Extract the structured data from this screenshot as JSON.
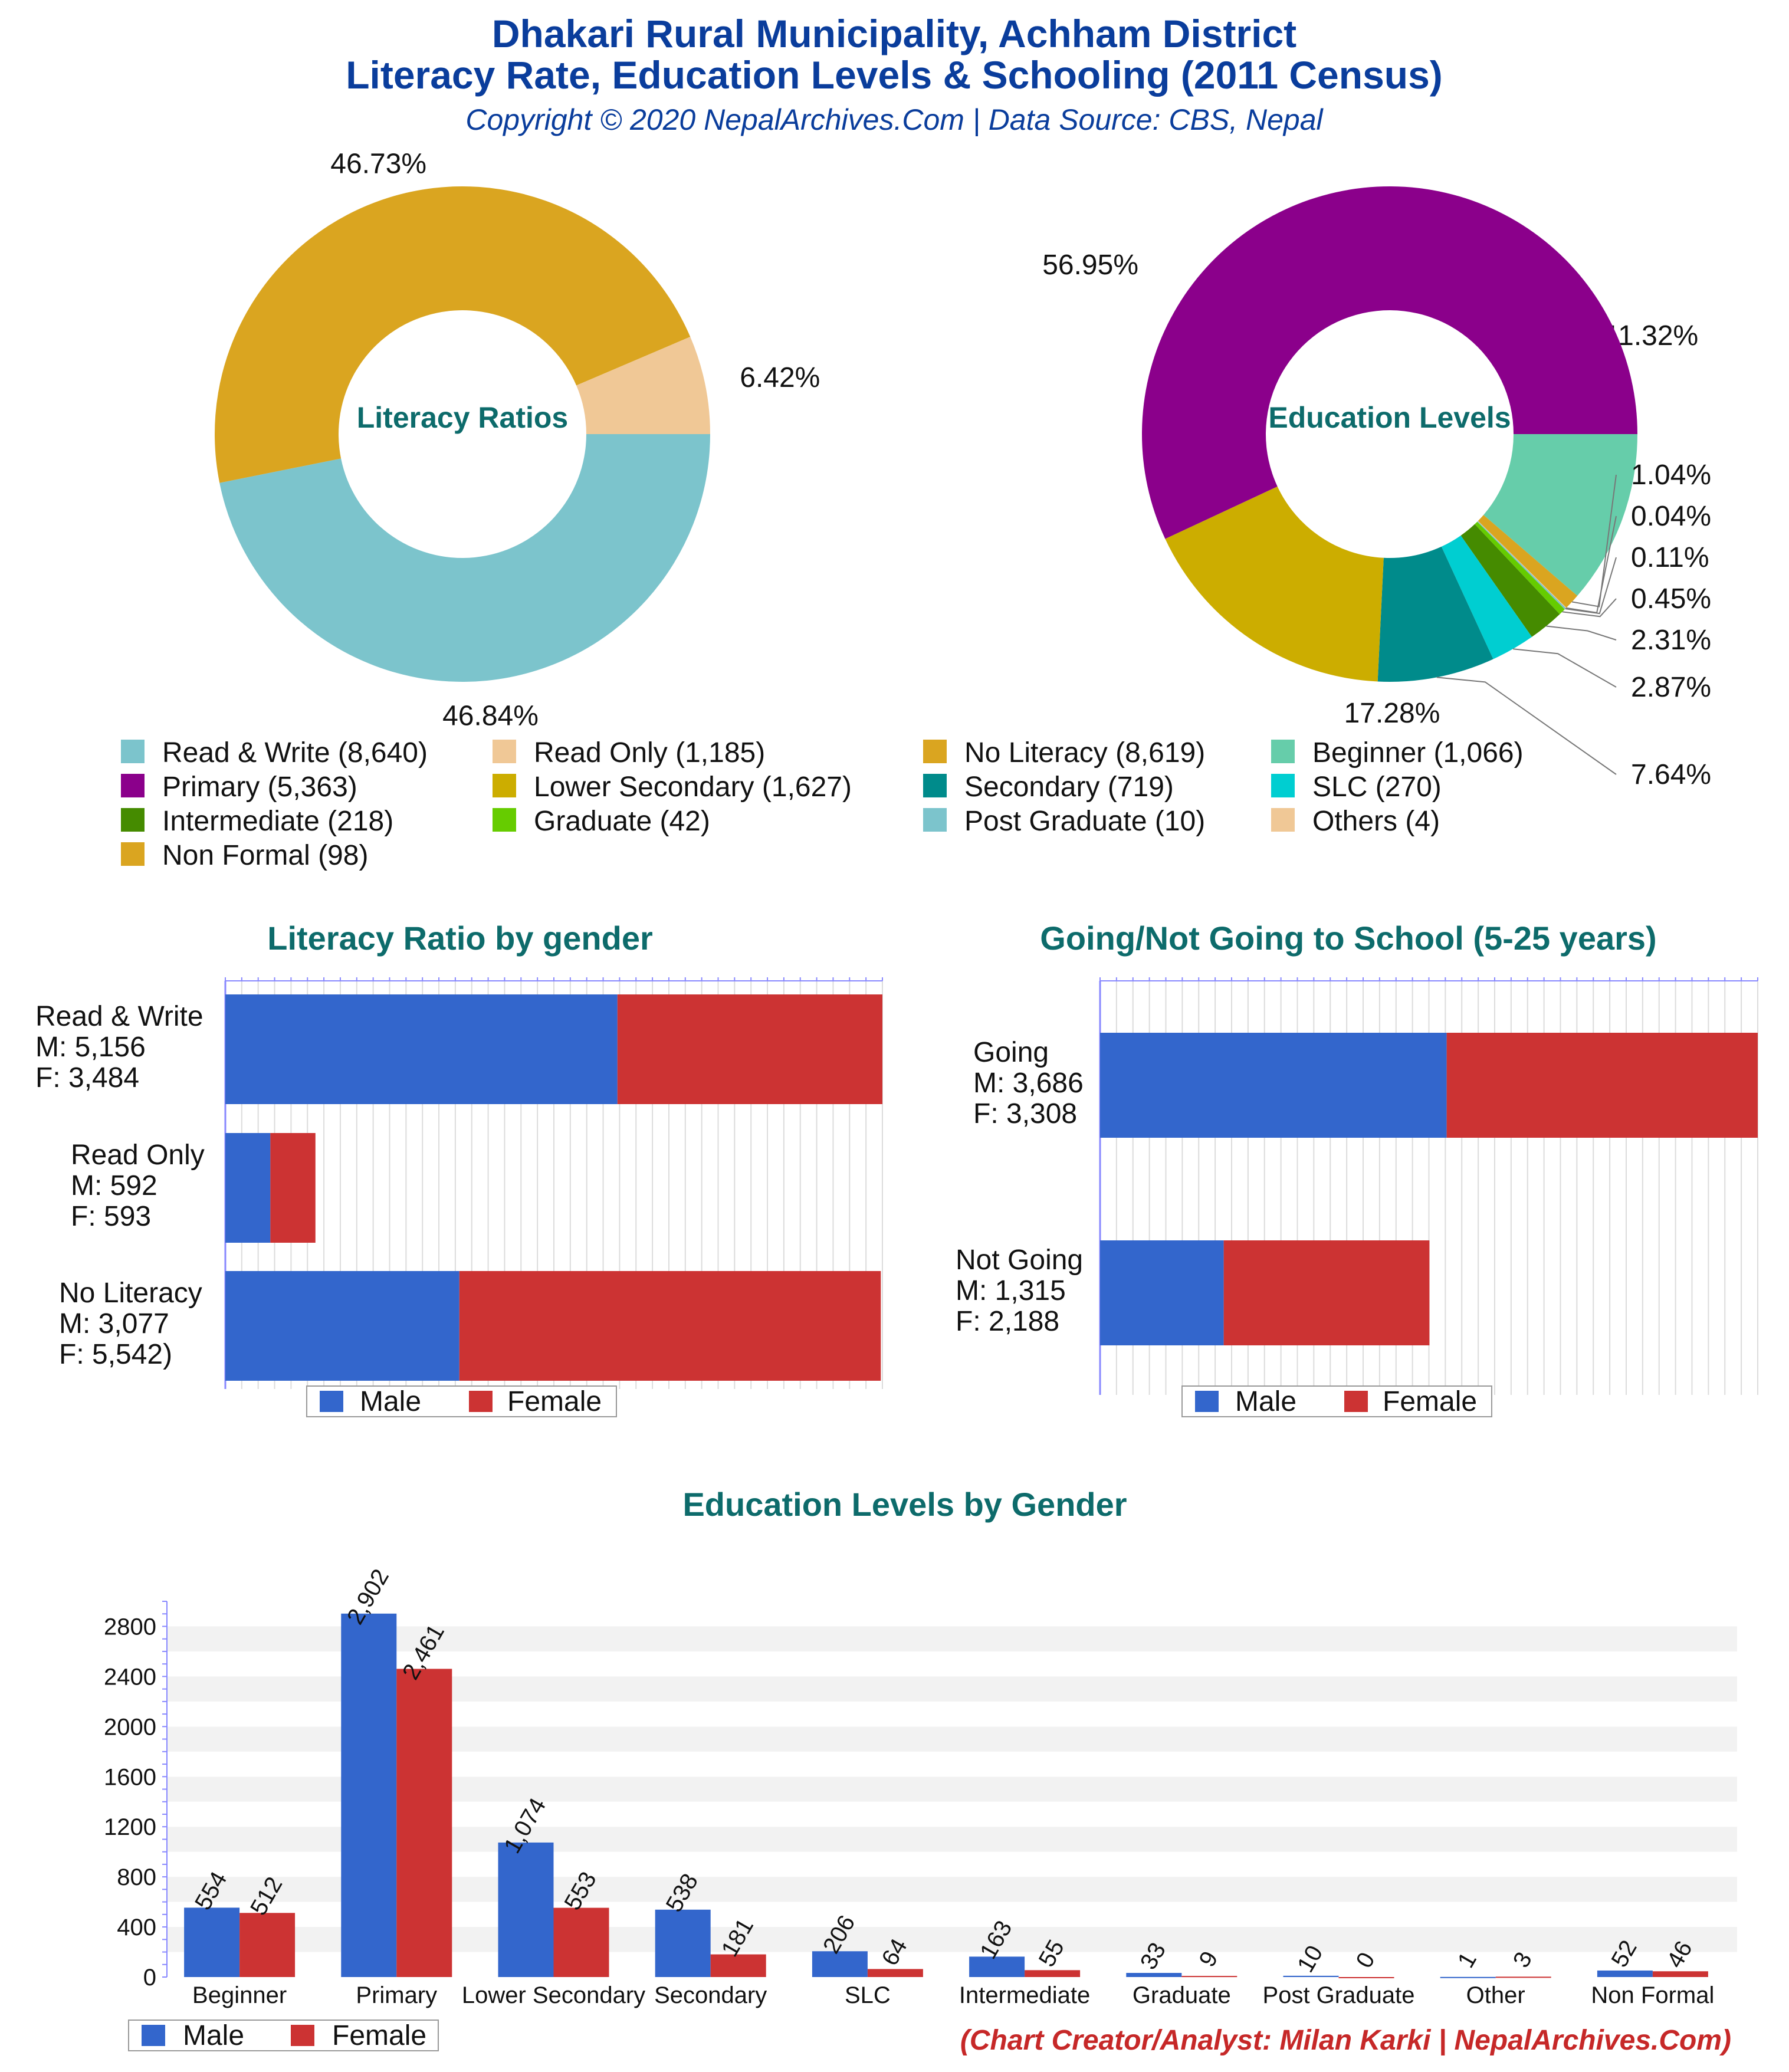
{
  "header": {
    "title_line1": "Dhakari Rural Municipality, Achham District",
    "title_line2": "Literacy Rate, Education Levels & Schooling (2011 Census)",
    "subtitle": "Copyright © 2020 NepalArchives.Com | Data Source: CBS, Nepal"
  },
  "footer": {
    "credit": "(Chart Creator/Analyst: Milan Karki | NepalArchives.Com)"
  },
  "colors": {
    "male": "#3366cc",
    "female": "#cc3333",
    "title_blue": "#0a3d9c",
    "title_teal": "#0d6b6b",
    "credit_red": "#c62828"
  },
  "chart_data": [
    {
      "type": "pie",
      "title": "Literacy Ratios",
      "donut": true,
      "slices": [
        {
          "name": "Read & Write",
          "value": 8640,
          "percent_label": "46.84%",
          "color": "#7cc4cc"
        },
        {
          "name": "No Literacy",
          "value": 8619,
          "percent_label": "46.73%",
          "color": "#daa520"
        },
        {
          "name": "Read Only",
          "value": 1185,
          "percent_label": "6.42%",
          "color": "#f0c896"
        }
      ]
    },
    {
      "type": "pie",
      "title": "Education Levels",
      "donut": true,
      "slices": [
        {
          "name": "Beginner",
          "value": 1066,
          "percent_label": "11.32%",
          "color": "#66cdaa"
        },
        {
          "name": "Non Formal",
          "value": 98,
          "percent_label": "1.04%",
          "color": "#daa520"
        },
        {
          "name": "Others",
          "value": 4,
          "percent_label": "0.04%",
          "color": "#f0c896"
        },
        {
          "name": "Post Graduate",
          "value": 10,
          "percent_label": "0.11%",
          "color": "#7cc4cc"
        },
        {
          "name": "Graduate",
          "value": 42,
          "percent_label": "0.45%",
          "color": "#66cc00"
        },
        {
          "name": "Intermediate",
          "value": 218,
          "percent_label": "2.31%",
          "color": "#458b00"
        },
        {
          "name": "SLC",
          "value": 270,
          "percent_label": "2.87%",
          "color": "#00ced1"
        },
        {
          "name": "Secondary",
          "value": 719,
          "percent_label": "7.64%",
          "color": "#008b8b"
        },
        {
          "name": "Lower Secondary",
          "value": 1627,
          "percent_label": "17.28%",
          "color": "#ccad00"
        },
        {
          "name": "Primary",
          "value": 5363,
          "percent_label": "56.95%",
          "color": "#8b008b"
        }
      ],
      "legend": [
        {
          "label": "Read & Write (8,640)",
          "color": "#7cc4cc"
        },
        {
          "label": "Read Only (1,185)",
          "color": "#f0c896"
        },
        {
          "label": "No Literacy (8,619)",
          "color": "#daa520"
        },
        {
          "label": "Beginner (1,066)",
          "color": "#66cdaa"
        },
        {
          "label": "Primary (5,363)",
          "color": "#8b008b"
        },
        {
          "label": "Lower Secondary (1,627)",
          "color": "#ccad00"
        },
        {
          "label": "Secondary (719)",
          "color": "#008b8b"
        },
        {
          "label": "SLC (270)",
          "color": "#00ced1"
        },
        {
          "label": "Intermediate (218)",
          "color": "#458b00"
        },
        {
          "label": "Graduate (42)",
          "color": "#66cc00"
        },
        {
          "label": "Post Graduate (10)",
          "color": "#7cc4cc"
        },
        {
          "label": "Others (4)",
          "color": "#f0c896"
        },
        {
          "label": "Non Formal (98)",
          "color": "#daa520"
        }
      ]
    },
    {
      "type": "bar",
      "orientation": "horizontal",
      "stacked": true,
      "title": "Literacy Ratio by gender",
      "categories": [
        "Read & Write",
        "Read Only",
        "No Literacy"
      ],
      "series": [
        {
          "name": "Male",
          "values": [
            5156,
            592,
            3077
          ]
        },
        {
          "name": "Female",
          "values": [
            3484,
            593,
            5542
          ]
        }
      ],
      "category_labels": [
        [
          "Read & Write",
          "M: 5,156",
          "F: 3,484"
        ],
        [
          "Read Only",
          "M: 592",
          "F: 593"
        ],
        [
          "No Literacy",
          "M: 3,077",
          "F: 5,542)"
        ]
      ],
      "xlim": [
        0,
        8640
      ]
    },
    {
      "type": "bar",
      "orientation": "horizontal",
      "stacked": true,
      "title": "Going/Not Going to School (5-25 years)",
      "categories": [
        "Going",
        "Not Going"
      ],
      "series": [
        {
          "name": "Male",
          "values": [
            3686,
            1315
          ]
        },
        {
          "name": "Female",
          "values": [
            3308,
            2188
          ]
        }
      ],
      "category_labels": [
        [
          "Going",
          "M: 3,686",
          "F: 3,308"
        ],
        [
          "Not Going",
          "M: 1,315",
          "F: 2,188"
        ]
      ],
      "xlim": [
        0,
        6994
      ]
    },
    {
      "type": "bar",
      "title": "Education Levels by Gender",
      "categories": [
        "Beginner",
        "Primary",
        "Lower Secondary",
        "Secondary",
        "SLC",
        "Intermediate",
        "Graduate",
        "Post Graduate",
        "Other",
        "Non Formal"
      ],
      "series": [
        {
          "name": "Male",
          "values": [
            554,
            2902,
            1074,
            538,
            206,
            163,
            33,
            10,
            1,
            52
          ]
        },
        {
          "name": "Female",
          "values": [
            512,
            2461,
            553,
            181,
            64,
            55,
            9,
            0,
            3,
            46
          ]
        }
      ],
      "ylim": [
        0,
        3000
      ],
      "yticks": [
        0,
        400,
        800,
        1200,
        1600,
        2000,
        2400,
        2800
      ],
      "legend_position": "bottom-left"
    }
  ]
}
